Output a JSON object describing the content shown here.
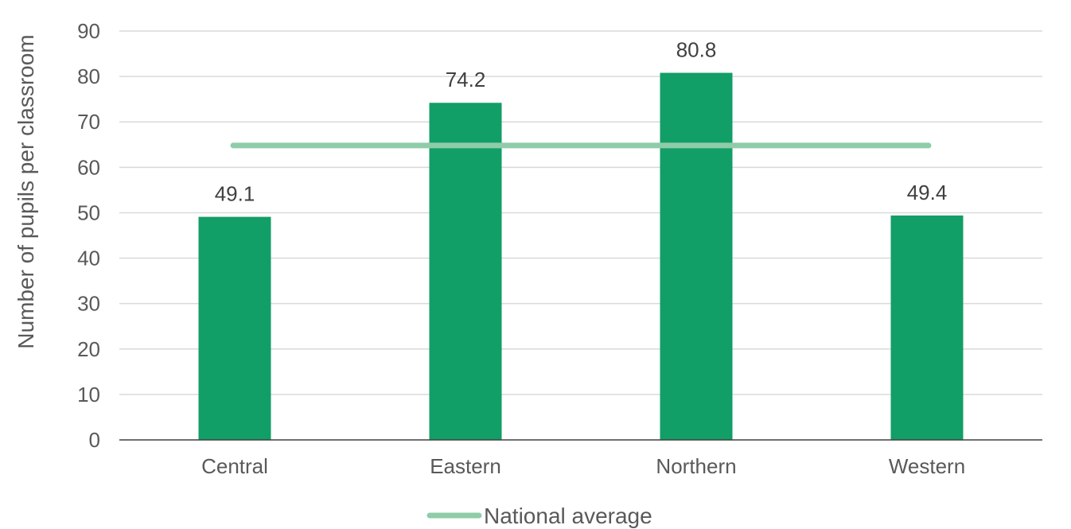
{
  "chart_data": {
    "type": "bar",
    "categories": [
      "Central",
      "Eastern",
      "Northern",
      "Western"
    ],
    "series": [
      {
        "values": [
          49.1,
          74.2,
          80.8,
          49.4
        ]
      }
    ],
    "reference_line": {
      "name": "National average",
      "value": 64.8
    },
    "data_labels": [
      "49.1",
      "74.2",
      "80.8",
      "49.4"
    ],
    "ylabel": "Number of pupils per classroom",
    "xlabel": "",
    "ylim": [
      0,
      90
    ],
    "yticks": [
      0,
      10,
      20,
      30,
      40,
      50,
      60,
      70,
      80,
      90
    ],
    "grid": true,
    "legend_position": "bottom-center",
    "colors": {
      "bar": "#129e67",
      "average_line": "#8fcca8",
      "grid": "#d9d9d9",
      "axis": "#404040"
    }
  }
}
